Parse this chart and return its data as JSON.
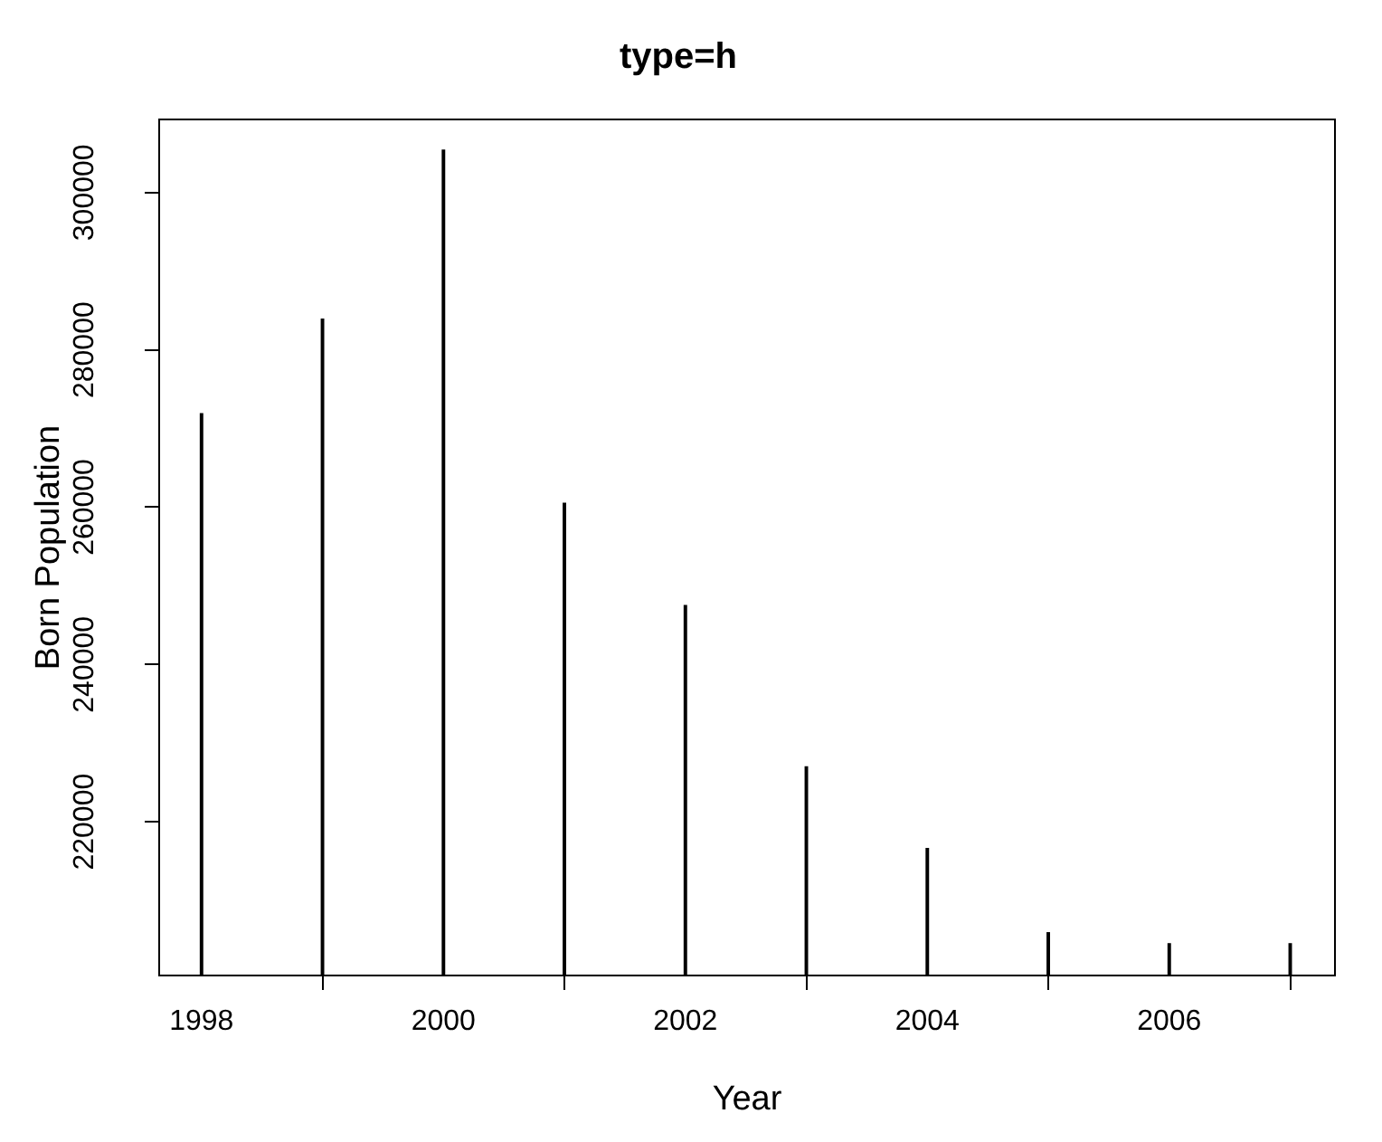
{
  "chart_data": {
    "type": "bar",
    "title": "type=h",
    "xlabel": "Year",
    "ylabel": "Born Population",
    "x": [
      1998,
      1999,
      2000,
      2001,
      2002,
      2003,
      2004,
      2005,
      2006,
      2007
    ],
    "series": [
      {
        "color": "#000000",
        "values": [
          271900,
          283900,
          305400,
          260500,
          247500,
          227000,
          216600,
          205900,
          204500,
          204500
        ]
      }
    ],
    "xlim": [
      1997.65,
      2007.37
    ],
    "xticks": [
      1998,
      2000,
      2002,
      2004,
      2006
    ],
    "ylim": [
      200460,
      309300
    ],
    "yticks": [
      220000,
      240000,
      260000,
      280000,
      300000
    ],
    "grid": false,
    "legend": false
  }
}
